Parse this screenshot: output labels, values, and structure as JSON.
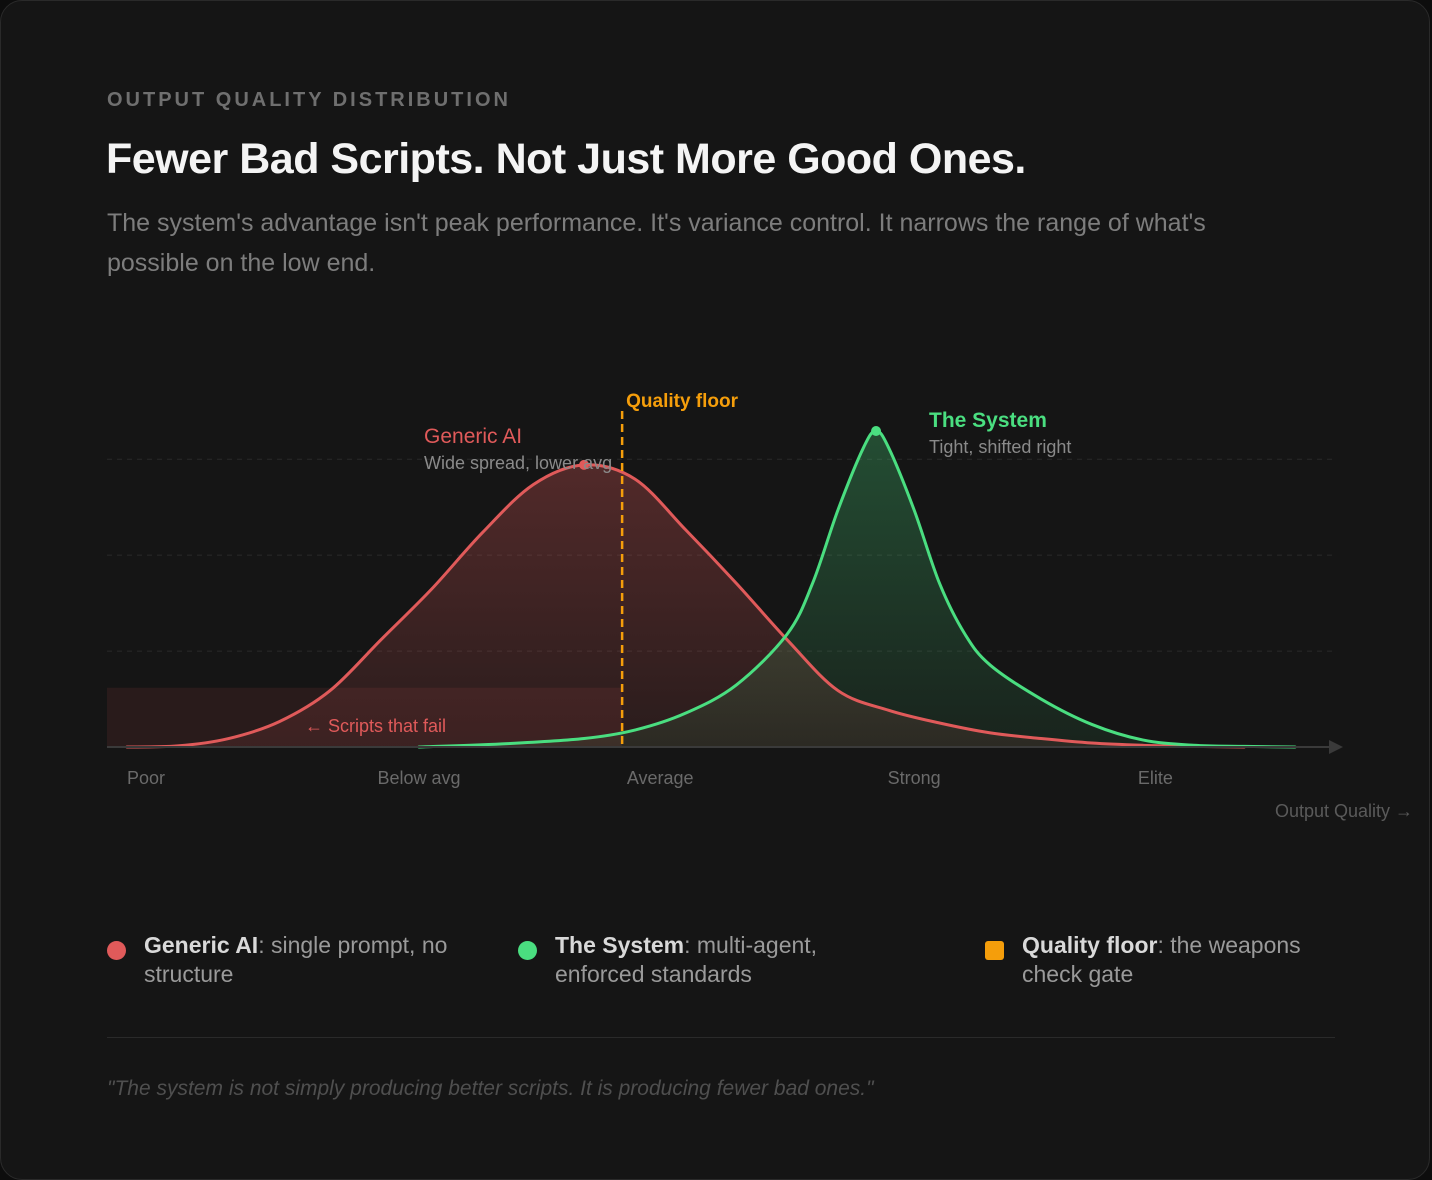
{
  "header": {
    "eyebrow": "OUTPUT QUALITY DISTRIBUTION",
    "title": "Fewer Bad Scripts. Not Just More Good Ones.",
    "subtitle": "The system's advantage isn't peak performance. It's variance control. It narrows the range of what's possible on the low end."
  },
  "colors": {
    "generic": "#e05a5a",
    "system": "#4ade80",
    "floor": "#f59e0b"
  },
  "chart_data": {
    "type": "area",
    "title": "Output Quality Distribution",
    "xlabel": "Output Quality →",
    "ylabel": "",
    "xlim": [
      0,
      4.6
    ],
    "ylim": [
      0,
      1.25
    ],
    "x_ticks": [
      {
        "x": 0.0,
        "label": "Poor"
      },
      {
        "x": 1.15,
        "label": "Below avg"
      },
      {
        "x": 2.1,
        "label": "Average"
      },
      {
        "x": 3.1,
        "label": "Strong"
      },
      {
        "x": 4.05,
        "label": "Elite"
      }
    ],
    "gridlines_y": [
      0.34,
      0.68,
      1.02
    ],
    "series": [
      {
        "name": "Generic AI",
        "label": "Generic AI",
        "sublabel": "Wide spread, lower avg",
        "color": "#e05a5a",
        "peak": {
          "x": 1.8,
          "y": 1.0
        },
        "points": [
          [
            0,
            0
          ],
          [
            0.2,
            0.004
          ],
          [
            0.4,
            0.03
          ],
          [
            0.6,
            0.09
          ],
          [
            0.8,
            0.2
          ],
          [
            1.0,
            0.38
          ],
          [
            1.2,
            0.56
          ],
          [
            1.4,
            0.76
          ],
          [
            1.6,
            0.93
          ],
          [
            1.8,
            1.0
          ],
          [
            2.0,
            0.95
          ],
          [
            2.2,
            0.77
          ],
          [
            2.4,
            0.58
          ],
          [
            2.6,
            0.38
          ],
          [
            2.8,
            0.2
          ],
          [
            3.0,
            0.13
          ],
          [
            3.2,
            0.085
          ],
          [
            3.4,
            0.05
          ],
          [
            3.6,
            0.03
          ],
          [
            3.8,
            0.014
          ],
          [
            4.0,
            0.006
          ],
          [
            4.2,
            0.002
          ],
          [
            4.4,
            0
          ]
        ]
      },
      {
        "name": "The System",
        "label": "The System",
        "sublabel": "Tight, shifted right",
        "color": "#4ade80",
        "peak": {
          "x": 2.95,
          "y": 1.12
        },
        "points": [
          [
            1.15,
            0
          ],
          [
            1.5,
            0.012
          ],
          [
            1.8,
            0.03
          ],
          [
            2.0,
            0.06
          ],
          [
            2.2,
            0.12
          ],
          [
            2.4,
            0.22
          ],
          [
            2.6,
            0.4
          ],
          [
            2.7,
            0.58
          ],
          [
            2.8,
            0.84
          ],
          [
            2.9,
            1.06
          ],
          [
            2.95,
            1.12
          ],
          [
            3.0,
            1.06
          ],
          [
            3.1,
            0.84
          ],
          [
            3.2,
            0.58
          ],
          [
            3.3,
            0.4
          ],
          [
            3.4,
            0.29
          ],
          [
            3.6,
            0.17
          ],
          [
            3.8,
            0.08
          ],
          [
            4.0,
            0.025
          ],
          [
            4.2,
            0.006
          ],
          [
            4.4,
            0.002
          ],
          [
            4.6,
            0
          ]
        ]
      }
    ],
    "quality_floor": {
      "x": 1.95,
      "label": "Quality floor",
      "color": "#f59e0b"
    },
    "fail_zone": {
      "x_start": 0,
      "x_end": 1.95,
      "y_top": 0.21,
      "label": "← Scripts that fail"
    }
  },
  "legend": [
    {
      "name": "Generic AI",
      "desc": ": single prompt, no structure",
      "color": "#e05a5a",
      "shape": "dot"
    },
    {
      "name": "The System",
      "desc": ": multi-agent, enforced standards",
      "color": "#4ade80",
      "shape": "dot"
    },
    {
      "name": "Quality floor",
      "desc": ": the weapons check gate",
      "color": "#f59e0b",
      "shape": "square"
    }
  ],
  "quote": "\"The system is not simply producing better scripts. It is producing fewer bad ones.\""
}
